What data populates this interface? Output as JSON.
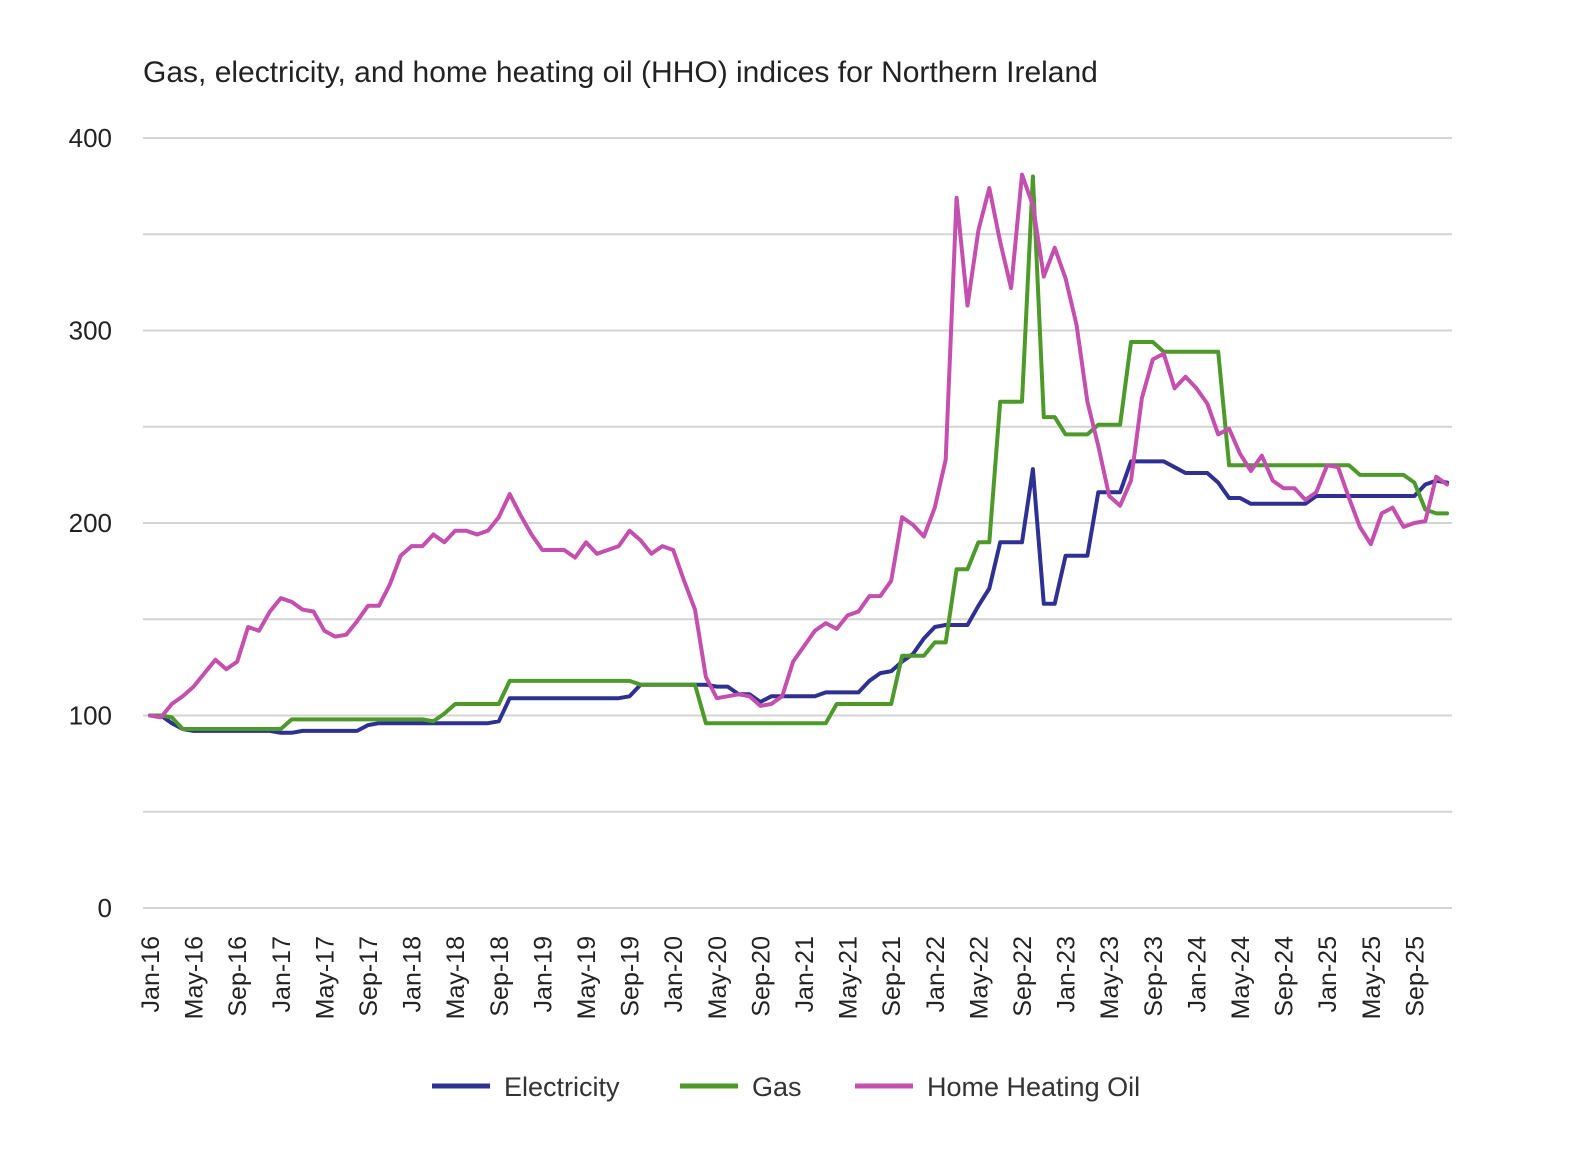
{
  "chart_data": {
    "type": "line",
    "title": "Gas, electricity, and home heating oil (HHO) indices for Northern Ireland",
    "xlabel": "",
    "ylabel": "",
    "ylim": [
      0,
      400
    ],
    "yticks": [
      0,
      100,
      200,
      300,
      400
    ],
    "grid_step": 50,
    "grid": true,
    "legend_position": "bottom",
    "x_tick_labels": [
      "Jan-16",
      "May-16",
      "Sep-16",
      "Jan-17",
      "May-17",
      "Sep-17",
      "Jan-18",
      "May-18",
      "Sep-18",
      "Jan-19",
      "May-19",
      "Sep-19",
      "Jan-20",
      "May-20",
      "Sep-20",
      "Jan-21",
      "May-21",
      "Sep-21",
      "Jan-22",
      "May-22",
      "Sep-22",
      "Jan-23",
      "May-23",
      "Sep-23",
      "Jan-24",
      "May-24",
      "Sep-24",
      "Jan-25",
      "May-25",
      "Sep-25"
    ],
    "x_tick_every_months": 4,
    "x_start": "Jan-16",
    "x_end": "Dec-25",
    "series": [
      {
        "name": "Electricity",
        "color": "#2E3192",
        "values": [
          100,
          100,
          96,
          93,
          92,
          92,
          92,
          92,
          92,
          92,
          92,
          92,
          91,
          91,
          92,
          92,
          92,
          92,
          92,
          92,
          95,
          96,
          96,
          96,
          96,
          96,
          96,
          96,
          96,
          96,
          96,
          96,
          97,
          109,
          109,
          109,
          109,
          109,
          109,
          109,
          109,
          109,
          109,
          109,
          110,
          116,
          116,
          116,
          116,
          116,
          116,
          116,
          115,
          115,
          111,
          111,
          107,
          110,
          110,
          110,
          110,
          110,
          112,
          112,
          112,
          112,
          118,
          122,
          123,
          128,
          132,
          140,
          146,
          147,
          147,
          147,
          157,
          166,
          190,
          190,
          190,
          228,
          158,
          158,
          183,
          183,
          183,
          216,
          216,
          216,
          232,
          232,
          232,
          232,
          229,
          226,
          226,
          226,
          221,
          213,
          213,
          210,
          210,
          210,
          210,
          210,
          210,
          214,
          214,
          214,
          214,
          214,
          214,
          214,
          214,
          214,
          214,
          220,
          222,
          221
        ]
      },
      {
        "name": "Gas",
        "color": "#4D9A2A",
        "values": [
          100,
          100,
          99,
          93,
          93,
          93,
          93,
          93,
          93,
          93,
          93,
          93,
          93,
          98,
          98,
          98,
          98,
          98,
          98,
          98,
          98,
          98,
          98,
          98,
          98,
          98,
          97,
          101,
          106,
          106,
          106,
          106,
          106,
          118,
          118,
          118,
          118,
          118,
          118,
          118,
          118,
          118,
          118,
          118,
          118,
          116,
          116,
          116,
          116,
          116,
          116,
          96,
          96,
          96,
          96,
          96,
          96,
          96,
          96,
          96,
          96,
          96,
          96,
          106,
          106,
          106,
          106,
          106,
          106,
          131,
          131,
          131,
          138,
          138,
          176,
          176,
          190,
          190,
          263,
          263,
          263,
          380,
          255,
          255,
          246,
          246,
          246,
          251,
          251,
          251,
          294,
          294,
          294,
          289,
          289,
          289,
          289,
          289,
          289,
          230,
          230,
          230,
          230,
          230,
          230,
          230,
          230,
          230,
          230,
          230,
          230,
          225,
          225,
          225,
          225,
          225,
          221,
          207,
          205,
          205
        ]
      },
      {
        "name": "Home Heating Oil",
        "color": "#C44FAE",
        "values": [
          100,
          99,
          106,
          110,
          115,
          122,
          129,
          124,
          128,
          146,
          144,
          154,
          161,
          159,
          155,
          154,
          144,
          141,
          142,
          149,
          157,
          157,
          168,
          183,
          188,
          188,
          194,
          190,
          196,
          196,
          194,
          196,
          203,
          215,
          204,
          194,
          186,
          186,
          186,
          182,
          190,
          184,
          186,
          188,
          196,
          191,
          184,
          188,
          186,
          170,
          155,
          120,
          109,
          110,
          111,
          110,
          105,
          106,
          110,
          128,
          136,
          144,
          148,
          145,
          152,
          154,
          162,
          162,
          170,
          203,
          199,
          193,
          208,
          233,
          369,
          313,
          352,
          374,
          346,
          322,
          381,
          365,
          328,
          343,
          327,
          303,
          263,
          240,
          214,
          209,
          222,
          265,
          285,
          288,
          270,
          276,
          270,
          262,
          246,
          249,
          236,
          227,
          235,
          222,
          218,
          218,
          212,
          216,
          230,
          229,
          213,
          198,
          189,
          205,
          208,
          198,
          200,
          201,
          224,
          220
        ]
      }
    ]
  }
}
